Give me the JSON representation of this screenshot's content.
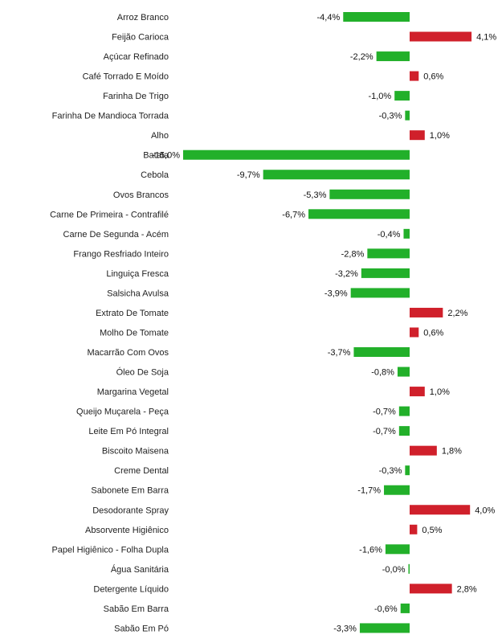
{
  "chart_data": {
    "type": "bar",
    "orientation": "horizontal",
    "title": "",
    "xlabel": "",
    "ylabel": "",
    "xlim": [
      -15.5,
      4.5
    ],
    "grid": false,
    "legend": "none",
    "colors": {
      "negative": "#22b02a",
      "positive": "#d0202b"
    },
    "categories": [
      "Arroz Branco",
      "Feijão Carioca",
      "Açúcar Refinado",
      "Café Torrado E Moído",
      "Farinha De Trigo",
      "Farinha De Mandioca Torrada",
      "Alho",
      "Batata",
      "Cebola",
      "Ovos Brancos",
      "Carne De Primeira - Contrafilé",
      "Carne De Segunda - Acém",
      "Frango Resfriado Inteiro",
      "Linguiça Fresca",
      "Salsicha Avulsa",
      "Extrato De Tomate",
      "Molho De Tomate",
      "Macarrão Com Ovos",
      "Óleo De Soja",
      "Margarina Vegetal",
      "Queijo Muçarela - Peça",
      "Leite Em Pó Integral",
      "Biscoito Maisena",
      "Creme Dental",
      "Sabonete Em Barra",
      "Desodorante Spray",
      "Absorvente Higiênico",
      "Papel Higiênico - Folha Dupla",
      "Água Sanitária",
      "Detergente Líquido",
      "Sabão Em Barra",
      "Sabão Em Pó"
    ],
    "values": [
      -4.4,
      4.1,
      -2.2,
      0.6,
      -1.0,
      -0.3,
      1.0,
      -15.0,
      -9.7,
      -5.3,
      -6.7,
      -0.4,
      -2.8,
      -3.2,
      -3.9,
      2.2,
      0.6,
      -3.7,
      -0.8,
      1.0,
      -0.7,
      -0.7,
      1.8,
      -0.3,
      -1.7,
      4.0,
      0.5,
      -1.6,
      -0.04,
      2.8,
      -0.6,
      -3.3
    ],
    "value_labels": [
      "-4,4%",
      "4,1%",
      "-2,2%",
      "0,6%",
      "-1,0%",
      "-0,3%",
      "1,0%",
      "-15,0%",
      "-9,7%",
      "-5,3%",
      "-6,7%",
      "-0,4%",
      "-2,8%",
      "-3,2%",
      "-3,9%",
      "2,2%",
      "0,6%",
      "-3,7%",
      "-0,8%",
      "1,0%",
      "-0,7%",
      "-0,7%",
      "1,8%",
      "-0,3%",
      "-1,7%",
      "4,0%",
      "0,5%",
      "-1,6%",
      "-0,0%",
      "2,8%",
      "-0,6%",
      "-3,3%"
    ]
  }
}
